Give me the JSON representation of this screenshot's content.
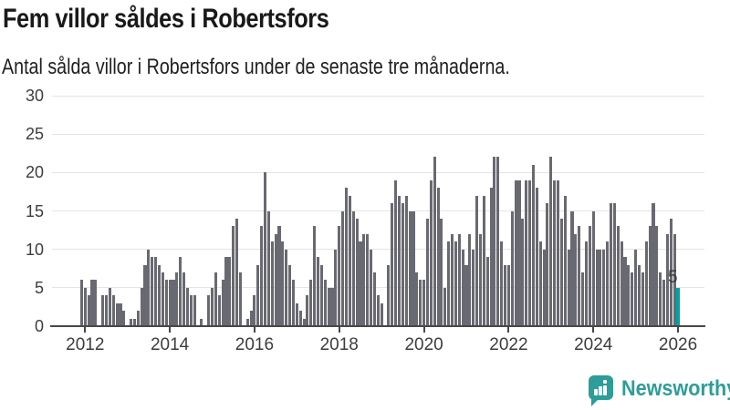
{
  "header": {
    "title": "Fem villor såldes i Robertsfors",
    "subtitle": "Antal sålda villor i Robertsfors under de senaste tre månaderna."
  },
  "chart_data": {
    "type": "bar",
    "title": "Fem villor såldes i Robertsfors",
    "subtitle": "Antal sålda villor i Robertsfors under de senaste tre månaderna.",
    "frequency": "monthly",
    "x_start": "2011-12",
    "x_end": "2026-01",
    "xlabel": "",
    "ylabel": "",
    "ylim": [
      0,
      30
    ],
    "grid": "horizontal",
    "yticks": [
      0,
      5,
      10,
      15,
      20,
      25,
      30
    ],
    "xticks": [
      2012,
      2014,
      2016,
      2018,
      2020,
      2022,
      2024,
      2026
    ],
    "values": [
      6,
      5,
      4,
      6,
      6,
      0,
      4,
      4,
      5,
      4,
      3,
      3,
      2,
      0,
      1,
      1,
      2,
      5,
      8,
      10,
      9,
      9,
      8,
      7,
      6,
      6,
      6,
      7,
      9,
      7,
      5,
      4,
      4,
      0,
      1,
      0,
      4,
      5,
      7,
      4,
      6,
      9,
      9,
      13,
      14,
      7,
      0,
      1,
      2,
      4,
      8,
      13,
      20,
      15,
      11,
      12,
      13,
      11,
      10,
      8,
      6,
      3,
      2,
      1,
      4,
      6,
      13,
      9,
      8,
      6,
      5,
      5,
      10,
      13,
      15,
      18,
      17,
      15,
      14,
      11,
      12,
      12,
      10,
      7,
      4,
      3,
      0,
      8,
      16,
      19,
      17,
      16,
      17,
      15,
      15,
      7,
      6,
      6,
      14,
      19,
      22,
      18,
      14,
      5,
      11,
      12,
      11,
      12,
      10,
      8,
      12,
      10,
      17,
      12,
      17,
      9,
      18,
      22,
      22,
      11,
      8,
      8,
      15,
      19,
      19,
      14,
      19,
      19,
      21,
      18,
      11,
      10,
      16,
      22,
      19,
      19,
      14,
      17,
      10,
      15,
      12,
      13,
      7,
      11,
      13,
      15,
      10,
      10,
      10,
      11,
      16,
      16,
      13,
      11,
      9,
      8,
      7,
      10,
      8,
      7,
      11,
      13,
      16,
      13,
      7,
      6,
      12,
      14,
      12,
      5
    ],
    "highlight": {
      "index": 169,
      "value": 5,
      "label": "5"
    },
    "colors": {
      "bar": "#696971",
      "highlight": "#00a3a3",
      "grid": "#e4e4e4",
      "axis": "#474747",
      "text": "#3d3d3d"
    }
  },
  "footer": {
    "brand": "Newsworthy",
    "brand_color": "#2d9d99",
    "logo_icon": "newsworthy-speech-bubble-bar-chart-icon"
  }
}
